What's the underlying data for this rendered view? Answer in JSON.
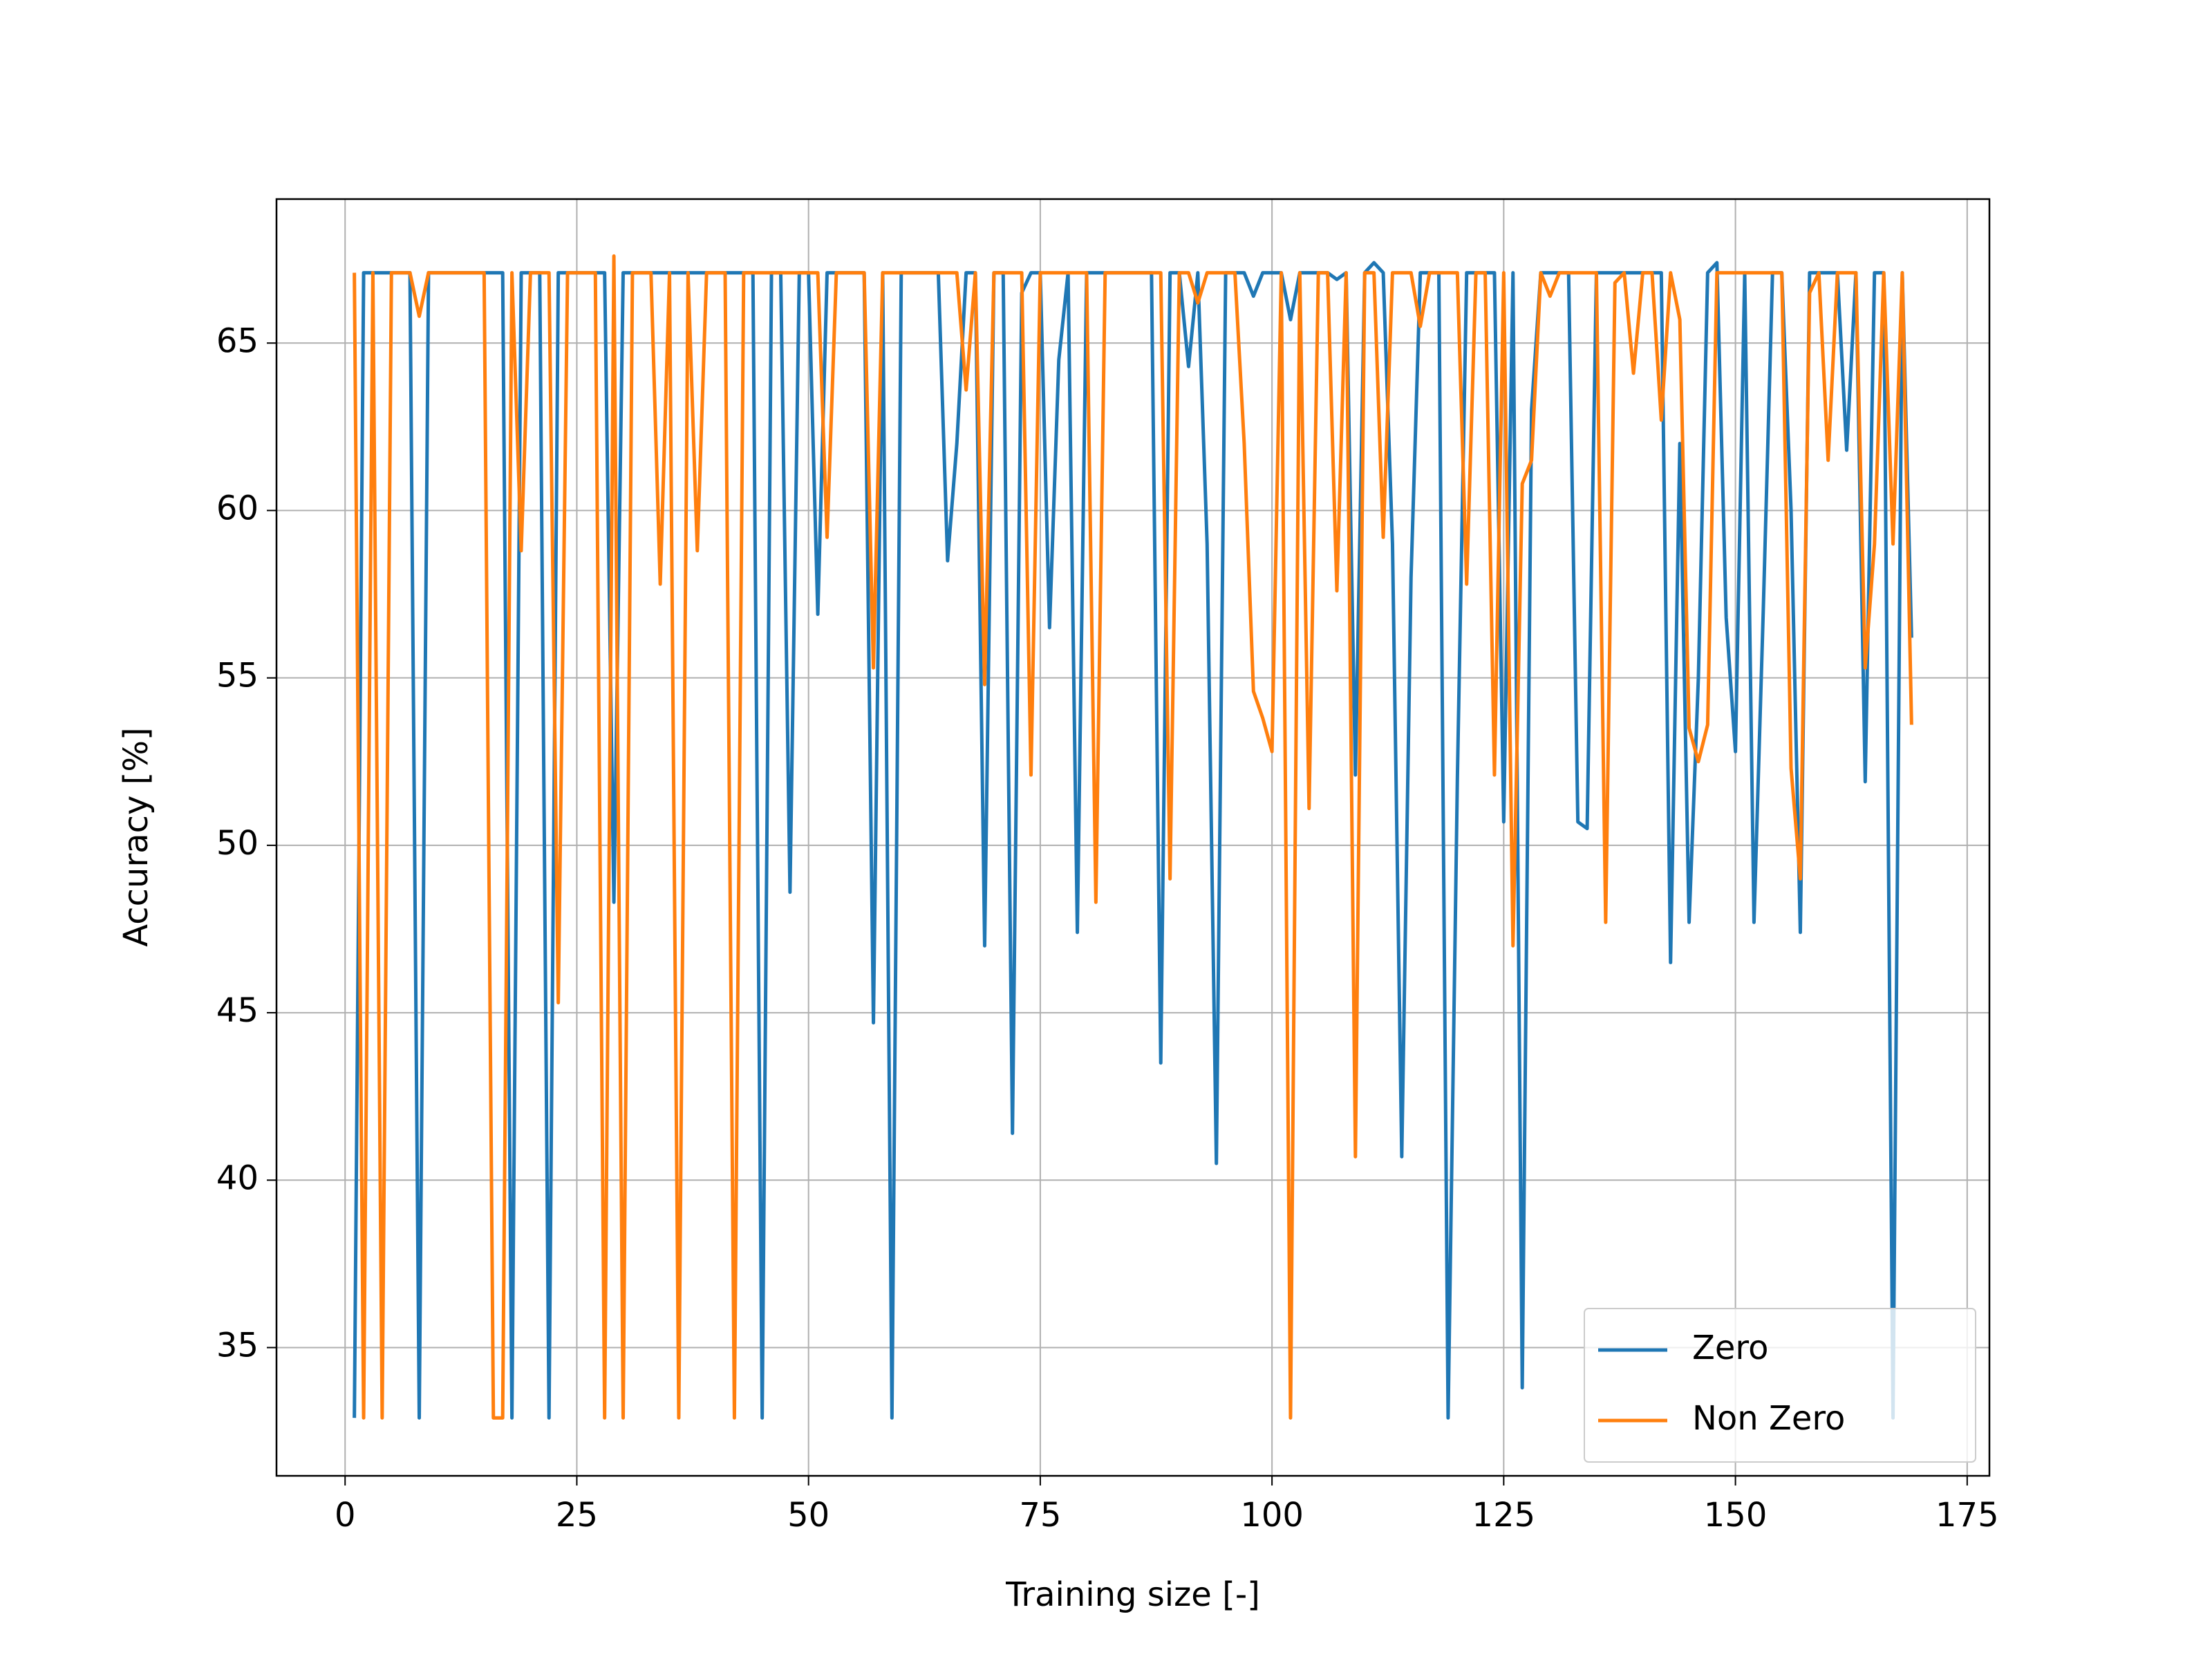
{
  "chart_data": {
    "type": "line",
    "xlabel": "Training size [-]",
    "ylabel": "Accuracy [%]",
    "x": [
      1,
      2,
      3,
      4,
      5,
      6,
      7,
      8,
      9,
      10,
      11,
      12,
      13,
      14,
      15,
      16,
      17,
      18,
      19,
      20,
      21,
      22,
      23,
      24,
      25,
      26,
      27,
      28,
      29,
      30,
      31,
      32,
      33,
      34,
      35,
      36,
      37,
      38,
      39,
      40,
      41,
      42,
      43,
      44,
      45,
      46,
      47,
      48,
      49,
      50,
      51,
      52,
      53,
      54,
      55,
      56,
      57,
      58,
      59,
      60,
      61,
      62,
      63,
      64,
      65,
      66,
      67,
      68,
      69,
      70,
      71,
      72,
      73,
      74,
      75,
      76,
      77,
      78,
      79,
      80,
      81,
      82,
      83,
      84,
      85,
      86,
      87,
      88,
      89,
      90,
      91,
      92,
      93,
      94,
      95,
      96,
      97,
      98,
      99,
      100,
      101,
      102,
      103,
      104,
      105,
      106,
      107,
      108,
      109,
      110,
      111,
      112,
      113,
      114,
      115,
      116,
      117,
      118,
      119,
      120,
      121,
      122,
      123,
      124,
      125,
      126,
      127,
      128,
      129,
      130,
      131,
      132,
      133,
      134,
      135,
      136,
      137,
      138,
      139,
      140,
      141,
      142,
      143,
      144,
      145,
      146,
      147,
      148,
      149,
      150,
      151,
      152,
      153,
      154,
      155,
      156,
      157,
      158,
      159,
      160,
      161,
      162,
      163,
      164,
      165,
      166,
      167,
      168,
      169
    ],
    "series": [
      {
        "name": "Zero",
        "color": "#1f77b4",
        "values": [
          32.9,
          67.1,
          67.1,
          67.1,
          67.1,
          67.1,
          67.1,
          32.9,
          67.1,
          67.1,
          67.1,
          67.1,
          67.1,
          67.1,
          67.1,
          67.1,
          67.1,
          32.9,
          67.1,
          67.1,
          67.1,
          32.9,
          67.1,
          67.1,
          67.1,
          67.1,
          67.1,
          67.1,
          48.3,
          67.1,
          67.1,
          67.1,
          67.1,
          67.1,
          67.1,
          67.1,
          67.1,
          67.1,
          67.1,
          67.1,
          67.1,
          67.1,
          67.1,
          67.1,
          32.9,
          67.1,
          67.1,
          48.6,
          67.1,
          67.1,
          56.9,
          67.1,
          67.1,
          67.1,
          67.1,
          67.1,
          44.7,
          67.1,
          32.9,
          67.1,
          67.1,
          67.1,
          67.1,
          67.1,
          58.5,
          62.0,
          67.1,
          67.1,
          47.0,
          67.1,
          67.1,
          41.4,
          66.5,
          67.1,
          67.1,
          56.5,
          64.5,
          67.1,
          47.4,
          67.1,
          67.1,
          67.1,
          67.1,
          67.1,
          67.1,
          67.1,
          67.1,
          43.5,
          67.1,
          67.1,
          64.3,
          67.1,
          59.0,
          40.5,
          67.1,
          67.1,
          67.1,
          66.4,
          67.1,
          67.1,
          67.1,
          65.7,
          67.1,
          67.1,
          67.1,
          67.1,
          66.9,
          67.1,
          52.1,
          67.1,
          67.4,
          67.1,
          59.0,
          40.7,
          58.0,
          67.1,
          67.1,
          67.1,
          32.9,
          52.0,
          67.1,
          67.1,
          67.1,
          67.1,
          50.7,
          67.1,
          33.8,
          63.0,
          67.1,
          67.1,
          67.1,
          67.1,
          50.7,
          50.5,
          67.1,
          67.1,
          67.1,
          67.1,
          67.1,
          67.1,
          67.1,
          67.1,
          46.5,
          62.0,
          47.7,
          55.0,
          67.1,
          67.4,
          56.8,
          52.8,
          67.1,
          47.7,
          57.0,
          67.1,
          67.1,
          60.0,
          47.4,
          67.1,
          67.1,
          67.1,
          67.1,
          61.8,
          67.1,
          51.9,
          67.1,
          67.1,
          32.9,
          67.1,
          56.2
        ]
      },
      {
        "name": "Non Zero",
        "color": "#ff7f0e",
        "values": [
          67.1,
          32.9,
          67.1,
          32.9,
          67.1,
          67.1,
          67.1,
          65.8,
          67.1,
          67.1,
          67.1,
          67.1,
          67.1,
          67.1,
          67.1,
          32.9,
          32.9,
          67.1,
          58.8,
          67.1,
          67.1,
          67.1,
          45.3,
          67.1,
          67.1,
          67.1,
          67.1,
          32.9,
          67.6,
          32.9,
          67.1,
          67.1,
          67.1,
          57.8,
          67.1,
          32.9,
          67.1,
          58.8,
          67.1,
          67.1,
          67.1,
          32.9,
          67.1,
          67.1,
          67.1,
          67.1,
          67.1,
          67.1,
          67.1,
          67.1,
          67.1,
          59.2,
          67.1,
          67.1,
          67.1,
          67.1,
          55.3,
          67.1,
          67.1,
          67.1,
          67.1,
          67.1,
          67.1,
          67.1,
          67.1,
          67.1,
          63.6,
          67.1,
          54.8,
          67.1,
          67.1,
          67.1,
          67.1,
          52.1,
          67.1,
          67.1,
          67.1,
          67.1,
          67.1,
          67.1,
          48.3,
          67.1,
          67.1,
          67.1,
          67.1,
          67.1,
          67.1,
          67.1,
          49.0,
          67.1,
          67.1,
          66.2,
          67.1,
          67.1,
          67.1,
          67.1,
          62.0,
          54.6,
          53.8,
          52.8,
          67.1,
          32.9,
          67.1,
          51.1,
          67.1,
          67.1,
          57.6,
          67.1,
          40.7,
          67.1,
          67.1,
          59.2,
          67.1,
          67.1,
          67.1,
          65.5,
          67.1,
          67.1,
          67.1,
          67.1,
          57.8,
          67.1,
          67.1,
          52.1,
          67.1,
          47.0,
          60.8,
          61.5,
          67.1,
          66.4,
          67.1,
          67.1,
          67.1,
          67.1,
          67.1,
          47.7,
          66.8,
          67.1,
          64.1,
          67.1,
          67.1,
          62.7,
          67.1,
          65.7,
          53.5,
          52.5,
          53.6,
          67.1,
          67.1,
          67.1,
          67.1,
          67.1,
          67.1,
          67.1,
          67.1,
          52.3,
          49.0,
          66.5,
          67.1,
          61.5,
          67.1,
          67.1,
          67.1,
          55.3,
          59.0,
          67.1,
          59.0,
          67.1,
          53.6
        ]
      }
    ],
    "xlim": [
      -7.4,
      177.4
    ],
    "ylim": [
      31.17,
      69.3
    ],
    "xticks": [
      0,
      25,
      50,
      75,
      100,
      125,
      150,
      175
    ],
    "yticks": [
      35,
      40,
      45,
      50,
      55,
      60,
      65
    ],
    "grid": true,
    "legend": "lower right"
  }
}
